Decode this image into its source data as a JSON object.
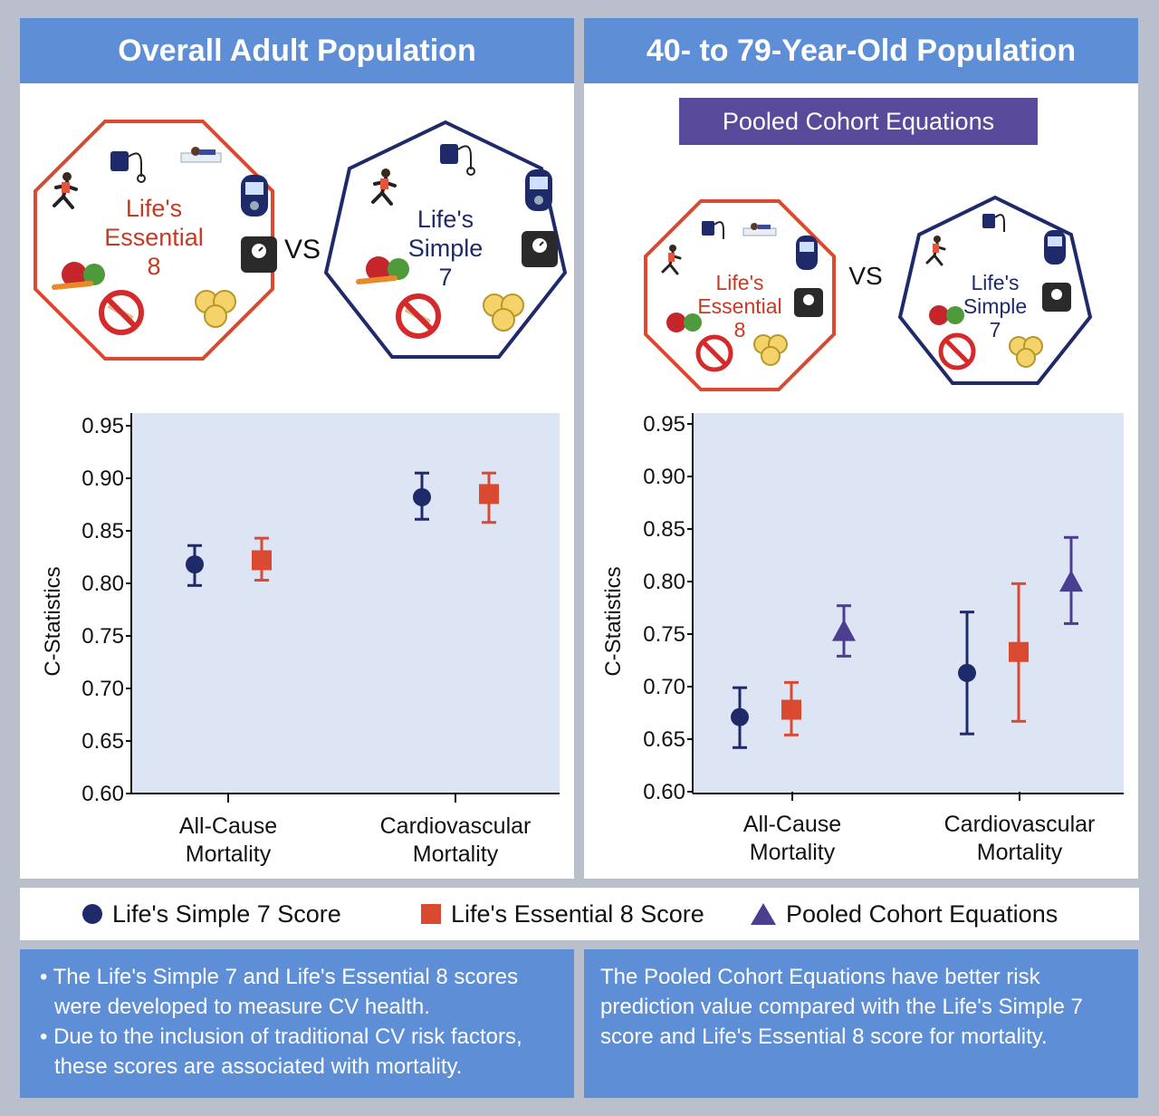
{
  "left_panel": {
    "title": "Overall Adult Population",
    "badge_le8": [
      "Life's",
      "Essential",
      "8"
    ],
    "badge_ls7": [
      "Life's",
      "Simple",
      "7"
    ],
    "vs": "VS"
  },
  "right_panel": {
    "title": "40- to 79-Year-Old Population",
    "subtitle": "Pooled Cohort Equations",
    "badge_le8": [
      "Life's",
      "Essential",
      "8"
    ],
    "badge_ls7": [
      "Life's",
      "Simple",
      "7"
    ],
    "vs": "VS"
  },
  "colors": {
    "ls7": "#1f2a6b",
    "le8": "#d94a30",
    "pce": "#4b3d8f",
    "header": "#5e8fd6",
    "plot_bg": "#dde5f5"
  },
  "chart_data": [
    {
      "type": "scatter",
      "title": "Overall Adult Population",
      "ylabel": "C-Statistics",
      "ylim": [
        0.6,
        0.95
      ],
      "yticks": [
        "0.60",
        "0.65",
        "0.70",
        "0.75",
        "0.80",
        "0.85",
        "0.90",
        "0.95"
      ],
      "categories": [
        [
          "All-Cause",
          "Mortality"
        ],
        [
          "Cardiovascular",
          "Mortality"
        ]
      ],
      "series": [
        {
          "name": "Life's Simple 7 Score",
          "marker": "circle",
          "values": [
            0.818,
            0.882
          ],
          "lower": [
            0.798,
            0.861
          ],
          "upper": [
            0.836,
            0.905
          ]
        },
        {
          "name": "Life's Essential 8 Score",
          "marker": "square",
          "values": [
            0.822,
            0.885
          ],
          "lower": [
            0.803,
            0.858
          ],
          "upper": [
            0.843,
            0.905
          ]
        }
      ]
    },
    {
      "type": "scatter",
      "title": "40- to 79-Year-Old Population",
      "ylabel": "C-Statistics",
      "ylim": [
        0.6,
        0.95
      ],
      "yticks": [
        "0.60",
        "0.65",
        "0.70",
        "0.75",
        "0.80",
        "0.85",
        "0.90",
        "0.95"
      ],
      "categories": [
        [
          "All-Cause",
          "Mortality"
        ],
        [
          "Cardiovascular",
          "Mortality"
        ]
      ],
      "series": [
        {
          "name": "Life's Simple 7 Score",
          "marker": "circle",
          "values": [
            0.671,
            0.713
          ],
          "lower": [
            0.642,
            0.655
          ],
          "upper": [
            0.699,
            0.771
          ]
        },
        {
          "name": "Life's Essential 8 Score",
          "marker": "square",
          "values": [
            0.678,
            0.733
          ],
          "lower": [
            0.654,
            0.667
          ],
          "upper": [
            0.704,
            0.798
          ]
        },
        {
          "name": "Pooled Cohort Equations",
          "marker": "triangle",
          "values": [
            0.752,
            0.799
          ],
          "lower": [
            0.729,
            0.76
          ],
          "upper": [
            0.777,
            0.842
          ]
        }
      ]
    }
  ],
  "legend": [
    {
      "label": "Life's Simple 7 Score",
      "marker": "circle"
    },
    {
      "label": "Life's Essential 8 Score",
      "marker": "square"
    },
    {
      "label": "Pooled Cohort Equations",
      "marker": "triangle"
    }
  ],
  "notes": {
    "left": [
      "The Life's Simple 7 and Life's Essential 8 scores were developed to measure CV health.",
      "Due to the inclusion of traditional CV risk factors, these scores are associated with mortality."
    ],
    "right": "The Pooled Cohort Equations have better risk prediction value compared with the Life's Simple 7 score and Life's Essential 8 score for mortality."
  }
}
